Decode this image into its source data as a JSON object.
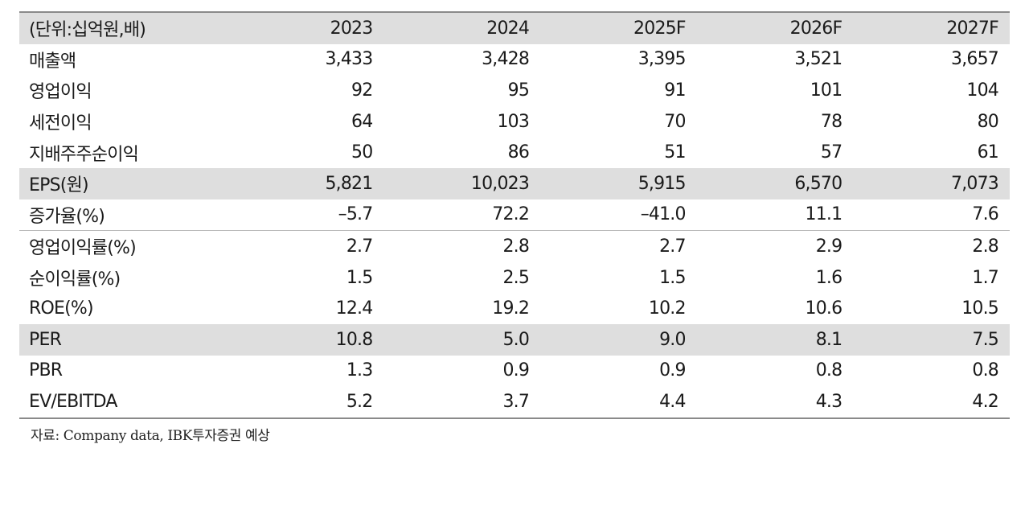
{
  "table": {
    "header": [
      "(단위:십억원,배)",
      "2023",
      "2024",
      "2025F",
      "2026F",
      "2027F"
    ],
    "rows": [
      {
        "label": "매출액",
        "values": [
          "3,433",
          "3,428",
          "3,395",
          "3,521",
          "3,657"
        ]
      },
      {
        "label": "영업이익",
        "values": [
          "92",
          "95",
          "91",
          "101",
          "104"
        ]
      },
      {
        "label": "세전이익",
        "values": [
          "64",
          "103",
          "70",
          "78",
          "80"
        ]
      },
      {
        "label": "지배주주순이익",
        "values": [
          "50",
          "86",
          "51",
          "57",
          "61"
        ]
      },
      {
        "label": "EPS(원)",
        "values": [
          "5,821",
          "10,023",
          "5,915",
          "6,570",
          "7,073"
        ]
      },
      {
        "label": "증가율(%)",
        "values": [
          "–5.7",
          "72.2",
          "–41.0",
          "11.1",
          "7.6"
        ]
      },
      {
        "label": "영업이익률(%)",
        "values": [
          "2.7",
          "2.8",
          "2.7",
          "2.9",
          "2.8"
        ]
      },
      {
        "label": "순이익률(%)",
        "values": [
          "1.5",
          "2.5",
          "1.5",
          "1.6",
          "1.7"
        ]
      },
      {
        "label": "ROE(%)",
        "values": [
          "12.4",
          "19.2",
          "10.2",
          "10.6",
          "10.5"
        ]
      },
      {
        "label": "PER",
        "values": [
          "10.8",
          "5.0",
          "9.0",
          "8.1",
          "7.5"
        ]
      },
      {
        "label": "PBR",
        "values": [
          "1.3",
          "0.9",
          "0.9",
          "0.8",
          "0.8"
        ]
      },
      {
        "label": "EV/EBITDA",
        "values": [
          "5.2",
          "3.7",
          "4.4",
          "4.3",
          "4.2"
        ]
      }
    ]
  },
  "source": "자료: Company data, IBK투자증권 예상",
  "colors": {
    "header_bg": "#dedede",
    "shade_bg": "#dedede",
    "rule": "#8a8a8a"
  }
}
